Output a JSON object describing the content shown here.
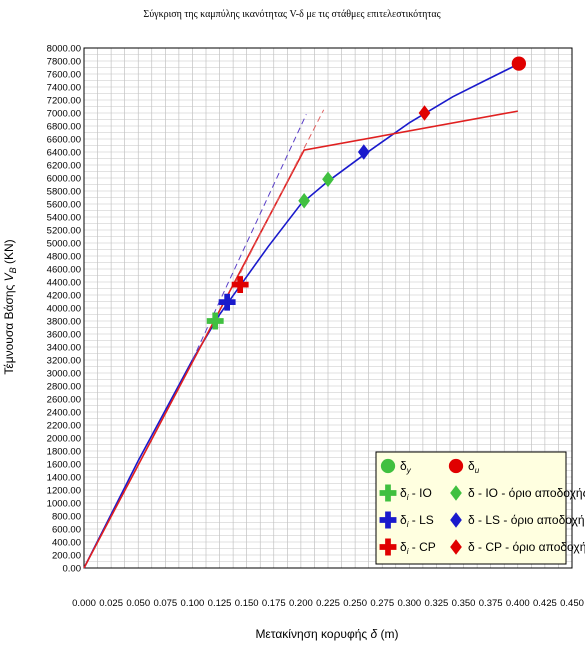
{
  "chart_data": {
    "type": "line",
    "title": "Σύγκριση της καμπύλης ικανότητας V-δ με τις στάθμες επιτελεστικότητας",
    "xlabel": "Μετακίνηση κορυφής δ (m)",
    "ylabel": "Τέμνουσα Βάσης V_B (KN)",
    "xlim": [
      0,
      0.45
    ],
    "ylim": [
      0,
      8000
    ],
    "x_ticks": [
      "0.000",
      "0.025",
      "0.050",
      "0.075",
      "0.100",
      "0.125",
      "0.150",
      "0.175",
      "0.200",
      "0.225",
      "0.250",
      "0.275",
      "0.300",
      "0.325",
      "0.350",
      "0.375",
      "0.400",
      "0.425",
      "0.450"
    ],
    "y_ticks": [
      "0.00",
      "200.00",
      "400.00",
      "600.00",
      "800.00",
      "1000.00",
      "1200.00",
      "1400.00",
      "1600.00",
      "1800.00",
      "2000.00",
      "2200.00",
      "2400.00",
      "2600.00",
      "2800.00",
      "3000.00",
      "3200.00",
      "3400.00",
      "3600.00",
      "3800.00",
      "4000.00",
      "4200.00",
      "4400.00",
      "4600.00",
      "4800.00",
      "5000.00",
      "5200.00",
      "5400.00",
      "5600.00",
      "5800.00",
      "6000.00",
      "6200.00",
      "6400.00",
      "6600.00",
      "6800.00",
      "7000.00",
      "7200.00",
      "7400.00",
      "7600.00",
      "7800.00",
      "8000.00"
    ],
    "grid": true,
    "legend_position": "bottom-right",
    "series": [
      {
        "kind": "capacity-curve",
        "color": "#1a1acc",
        "dash": false,
        "x": [
          0.0,
          0.05,
          0.1,
          0.125,
          0.14,
          0.17,
          0.2,
          0.225,
          0.26,
          0.3,
          0.34,
          0.37,
          0.4
        ],
        "y": [
          0,
          1650,
          3200,
          3900,
          4250,
          4950,
          5600,
          5950,
          6380,
          6850,
          7250,
          7500,
          7750
        ]
      },
      {
        "kind": "bilinear",
        "color": "#e02020",
        "dash": false,
        "x": [
          0.0,
          0.203,
          0.4
        ],
        "y": [
          0,
          6430,
          7030
        ]
      },
      {
        "kind": "elastic-stiffness",
        "color": "#5a3fc8",
        "dash": true,
        "x": [
          0.1,
          0.205
        ],
        "y": [
          3200,
          6980
        ]
      },
      {
        "kind": "elastic-stiffness",
        "color": "#e06060",
        "dash": true,
        "x": [
          0.14,
          0.221
        ],
        "y": [
          4400,
          7050
        ]
      }
    ],
    "markers": [
      {
        "shape": "circle",
        "color": "#e00000",
        "x": [
          0.401
        ],
        "y": [
          7760
        ]
      },
      {
        "shape": "cross",
        "color": "#40c040",
        "x": [
          0.121
        ],
        "y": [
          3800
        ]
      },
      {
        "shape": "cross",
        "color": "#1a1acc",
        "x": [
          0.132
        ],
        "y": [
          4090
        ]
      },
      {
        "shape": "cross",
        "color": "#e00000",
        "x": [
          0.144
        ],
        "y": [
          4360
        ]
      },
      {
        "shape": "diamond",
        "color": "#40c040",
        "x": [
          0.203,
          0.225
        ],
        "y": [
          5650,
          5980
        ]
      },
      {
        "shape": "diamond",
        "color": "#1a1acc",
        "x": [
          0.258
        ],
        "y": [
          6400
        ]
      },
      {
        "shape": "diamond",
        "color": "#e00000",
        "x": [
          0.314
        ],
        "y": [
          7000
        ]
      }
    ],
    "legend": [
      {
        "symbol": "circle",
        "color": "#40c040",
        "label": "δ",
        "sub": "y",
        "rest": ""
      },
      {
        "symbol": "circle",
        "color": "#e00000",
        "label": "δ",
        "sub": "u",
        "rest": ""
      },
      {
        "symbol": "cross",
        "color": "#40c040",
        "label": "δ",
        "sub": "i",
        "rest": " - IO"
      },
      {
        "symbol": "diamond",
        "color": "#40c040",
        "label": "δ",
        "sub": "",
        "rest": " - IO - όριο αποδοχής"
      },
      {
        "symbol": "cross",
        "color": "#1a1acc",
        "label": "δ",
        "sub": "i",
        "rest": " - LS"
      },
      {
        "symbol": "diamond",
        "color": "#1a1acc",
        "label": "δ",
        "sub": "",
        "rest": " - LS - όριο αποδοχής"
      },
      {
        "symbol": "cross",
        "color": "#e00000",
        "label": "δ",
        "sub": "i",
        "rest": " - CP"
      },
      {
        "symbol": "diamond",
        "color": "#e00000",
        "label": "δ",
        "sub": "",
        "rest": " - CP - όριο αποδοχής"
      }
    ]
  }
}
